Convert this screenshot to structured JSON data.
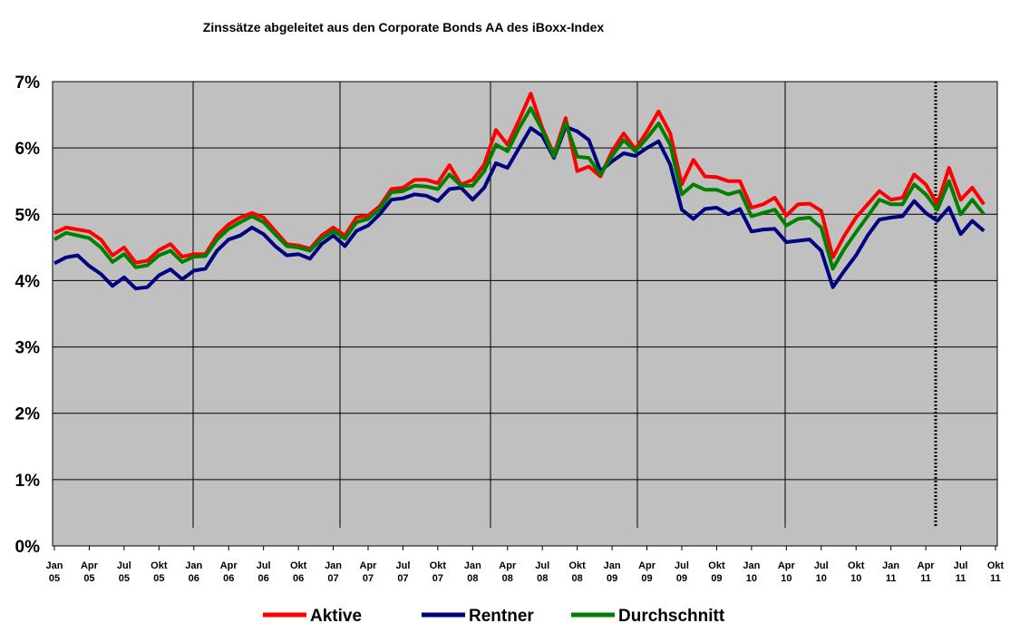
{
  "chart_data": {
    "type": "line",
    "title": "Zinssätze abgeleitet aus den Corporate Bonds AA des iBoxx-Index",
    "categories": [
      [
        "Jan",
        "05"
      ],
      null,
      null,
      [
        "Apr",
        "05"
      ],
      null,
      null,
      [
        "Jul",
        "05"
      ],
      null,
      null,
      [
        "Okt",
        "05"
      ],
      null,
      null,
      [
        "Jan",
        "06"
      ],
      null,
      null,
      [
        "Apr",
        "06"
      ],
      null,
      null,
      [
        "Jul",
        "06"
      ],
      null,
      null,
      [
        "Okt",
        "06"
      ],
      null,
      null,
      [
        "Jan",
        "07"
      ],
      null,
      null,
      [
        "Apr",
        "07"
      ],
      null,
      null,
      [
        "Jul",
        "07"
      ],
      null,
      null,
      [
        "Okt",
        "07"
      ],
      null,
      null,
      [
        "Jan",
        "08"
      ],
      null,
      null,
      [
        "Apr",
        "08"
      ],
      null,
      null,
      [
        "Jul",
        "08"
      ],
      null,
      null,
      [
        "Okt",
        "08"
      ],
      null,
      null,
      [
        "Jan",
        "09"
      ],
      null,
      null,
      [
        "Apr",
        "09"
      ],
      null,
      null,
      [
        "Jul",
        "09"
      ],
      null,
      null,
      [
        "Okt",
        "09"
      ],
      null,
      null,
      [
        "Jan",
        "10"
      ],
      null,
      null,
      [
        "Apr",
        "10"
      ],
      null,
      null,
      [
        "Jul",
        "10"
      ],
      null,
      null,
      [
        "Okt",
        "10"
      ],
      null,
      null,
      [
        "Jan",
        "11"
      ],
      null,
      null,
      [
        "Apr",
        "11"
      ],
      null,
      null,
      [
        "Jul",
        "11"
      ],
      null,
      null,
      [
        "Okt",
        "11"
      ]
    ],
    "series": [
      {
        "name": "Aktive",
        "color": "#ff0000",
        "values": [
          4.72,
          4.8,
          4.77,
          4.74,
          4.62,
          4.38,
          4.5,
          4.27,
          4.3,
          4.46,
          4.55,
          4.36,
          4.4,
          4.4,
          4.68,
          4.85,
          4.95,
          5.02,
          4.95,
          4.75,
          4.55,
          4.53,
          4.48,
          4.68,
          4.8,
          4.68,
          4.95,
          4.98,
          5.12,
          5.38,
          5.4,
          5.52,
          5.52,
          5.47,
          5.74,
          5.45,
          5.52,
          5.75,
          6.27,
          6.05,
          6.42,
          6.82,
          6.3,
          5.9,
          6.45,
          5.65,
          5.72,
          5.57,
          5.95,
          6.22,
          5.98,
          6.25,
          6.55,
          6.22,
          5.45,
          5.82,
          5.57,
          5.56,
          5.5,
          5.5,
          5.1,
          5.15,
          5.25,
          4.98,
          5.15,
          5.16,
          5.05,
          4.35,
          4.68,
          4.95,
          5.15,
          5.35,
          5.22,
          5.25,
          5.6,
          5.45,
          5.15,
          5.7,
          5.22,
          5.4,
          5.15,
          null
        ]
      },
      {
        "name": "Rentner",
        "color": "#000080",
        "values": [
          4.26,
          4.35,
          4.38,
          4.22,
          4.1,
          3.92,
          4.05,
          3.88,
          3.9,
          4.08,
          4.17,
          4.02,
          4.15,
          4.18,
          4.45,
          4.62,
          4.68,
          4.8,
          4.7,
          4.52,
          4.38,
          4.4,
          4.33,
          4.55,
          4.68,
          4.52,
          4.75,
          4.83,
          5.0,
          5.22,
          5.24,
          5.3,
          5.28,
          5.2,
          5.38,
          5.4,
          5.22,
          5.4,
          5.77,
          5.7,
          6.0,
          6.3,
          6.18,
          5.85,
          6.32,
          6.25,
          6.12,
          5.65,
          5.8,
          5.92,
          5.88,
          6.0,
          6.1,
          5.75,
          5.07,
          4.93,
          5.08,
          5.1,
          5.0,
          5.08,
          4.74,
          4.77,
          4.78,
          4.58,
          4.6,
          4.62,
          4.45,
          3.9,
          4.15,
          4.38,
          4.68,
          4.92,
          4.95,
          4.97,
          5.2,
          5.02,
          4.9,
          5.1,
          4.7,
          4.9,
          4.75,
          null
        ]
      },
      {
        "name": "Durchschnitt",
        "color": "#008000",
        "values": [
          4.62,
          4.72,
          4.68,
          4.64,
          4.5,
          4.28,
          4.4,
          4.2,
          4.23,
          4.38,
          4.45,
          4.28,
          4.36,
          4.37,
          4.62,
          4.78,
          4.88,
          4.97,
          4.88,
          4.7,
          4.52,
          4.5,
          4.45,
          4.63,
          4.75,
          4.63,
          4.88,
          4.93,
          5.08,
          5.33,
          5.35,
          5.43,
          5.42,
          5.38,
          5.6,
          5.43,
          5.43,
          5.65,
          6.05,
          5.95,
          6.3,
          6.6,
          6.27,
          5.87,
          6.38,
          5.87,
          5.85,
          5.6,
          5.88,
          6.12,
          5.95,
          6.15,
          6.37,
          6.05,
          5.3,
          5.45,
          5.37,
          5.37,
          5.3,
          5.35,
          4.97,
          5.02,
          5.07,
          4.83,
          4.93,
          4.95,
          4.8,
          4.18,
          4.48,
          4.73,
          4.97,
          5.22,
          5.15,
          5.15,
          5.45,
          5.3,
          5.07,
          5.5,
          5.0,
          5.22,
          5.0,
          null
        ]
      }
    ],
    "ylim": [
      0,
      7
    ],
    "yticks": [
      {
        "value": 0,
        "label": "0%"
      },
      {
        "value": 1,
        "label": "1%"
      },
      {
        "value": 2,
        "label": "2%"
      },
      {
        "value": 3,
        "label": "3%"
      },
      {
        "value": 4,
        "label": "4%"
      },
      {
        "value": 5,
        "label": "5%"
      },
      {
        "value": 6,
        "label": "6%"
      },
      {
        "value": 7,
        "label": "7%"
      }
    ],
    "grid": true,
    "legend": "bottom"
  }
}
